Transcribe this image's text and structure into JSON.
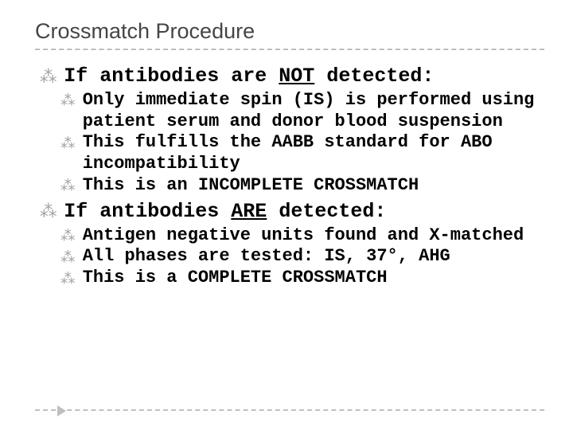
{
  "title": "Crossmatch Procedure",
  "section1": {
    "heading_pre": "If antibodies are ",
    "heading_em": "NOT",
    "heading_post": " detected:",
    "items": [
      "Only immediate spin (IS) is performed using patient serum and donor blood suspension",
      "This fulfills the AABB standard for ABO incompatibility",
      "This is an INCOMPLETE CROSSMATCH"
    ]
  },
  "section2": {
    "heading_pre": "If antibodies ",
    "heading_em": "ARE",
    "heading_post": " detected:",
    "items": [
      "Antigen negative units found and X-matched",
      "All phases are tested:  IS, 37°, AHG",
      "This is a COMPLETE CROSSMATCH"
    ]
  },
  "bullet_glyph": "⁂"
}
